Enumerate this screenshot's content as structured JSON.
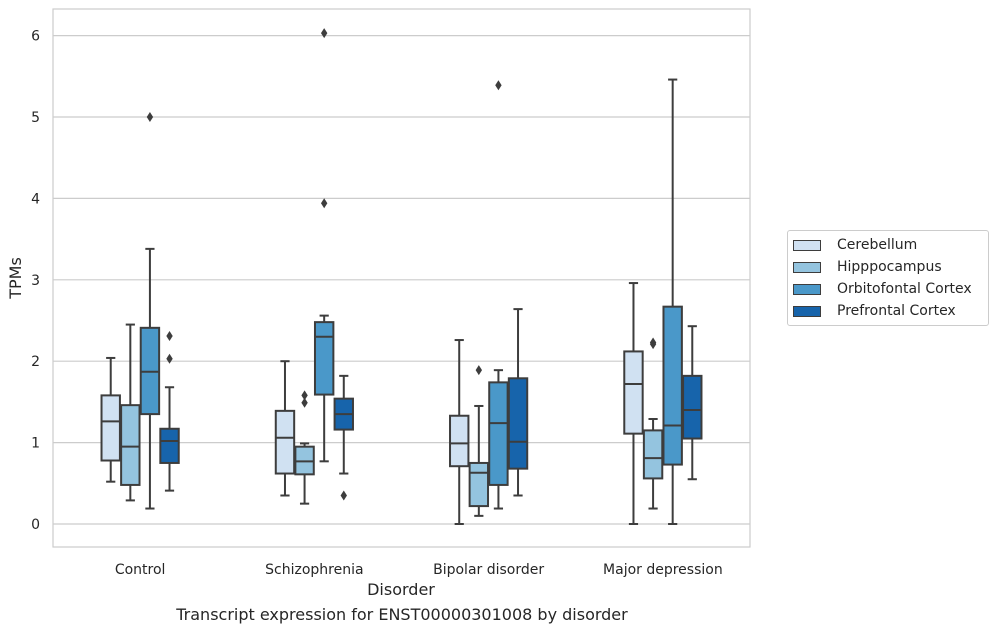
{
  "chart_data": {
    "type": "box",
    "xlabel": "Disorder",
    "ylabel": "TPMs",
    "caption": "Transcript expression for ENST00000301008 by disorder",
    "ylim": [
      -0.3,
      6.35
    ],
    "yticks": [
      0,
      1,
      2,
      3,
      4,
      5,
      6
    ],
    "grid": "horizontal",
    "legend_position": "right",
    "categories": [
      "Control",
      "Schizophrenia",
      "Bipolar disorder",
      "Major depression"
    ],
    "series": [
      {
        "name": "Cerebellum",
        "color": "#d0e1f2",
        "boxes": [
          {
            "low": 0.52,
            "q1": 0.78,
            "median": 1.26,
            "q3": 1.58,
            "high": 2.04,
            "outliers": []
          },
          {
            "low": 0.35,
            "q1": 0.62,
            "median": 1.06,
            "q3": 1.39,
            "high": 2.0,
            "outliers": []
          },
          {
            "low": 0.0,
            "q1": 0.71,
            "median": 0.99,
            "q3": 1.33,
            "high": 2.26,
            "outliers": []
          },
          {
            "low": 0.0,
            "q1": 1.11,
            "median": 1.72,
            "q3": 2.12,
            "high": 2.96,
            "outliers": []
          }
        ]
      },
      {
        "name": "Hipppocampus",
        "color": "#94c4df",
        "boxes": [
          {
            "low": 0.29,
            "q1": 0.48,
            "median": 0.95,
            "q3": 1.46,
            "high": 2.45,
            "outliers": []
          },
          {
            "low": 0.25,
            "q1": 0.61,
            "median": 0.77,
            "q3": 0.95,
            "high": 0.99,
            "outliers": [
              1.58,
              1.49
            ]
          },
          {
            "low": 0.1,
            "q1": 0.22,
            "median": 0.63,
            "q3": 0.75,
            "high": 1.45,
            "outliers": [
              1.89
            ]
          },
          {
            "low": 0.19,
            "q1": 0.56,
            "median": 0.81,
            "q3": 1.15,
            "high": 1.29,
            "outliers": [
              2.21,
              2.23
            ]
          }
        ]
      },
      {
        "name": "Orbitofontal Cortex",
        "color": "#4a98c9",
        "boxes": [
          {
            "low": 0.19,
            "q1": 1.35,
            "median": 1.87,
            "q3": 2.41,
            "high": 3.38,
            "outliers": [
              5.0
            ]
          },
          {
            "low": 0.77,
            "q1": 1.59,
            "median": 2.3,
            "q3": 2.48,
            "high": 2.56,
            "outliers": [
              6.03,
              3.94
            ]
          },
          {
            "low": 0.19,
            "q1": 0.48,
            "median": 1.24,
            "q3": 1.74,
            "high": 1.89,
            "outliers": [
              5.39
            ]
          },
          {
            "low": 0.0,
            "q1": 0.73,
            "median": 1.21,
            "q3": 2.67,
            "high": 5.46,
            "outliers": []
          }
        ]
      },
      {
        "name": "Prefrontal Cortex",
        "color": "#1764ab",
        "boxes": [
          {
            "low": 0.41,
            "q1": 0.75,
            "median": 1.02,
            "q3": 1.17,
            "high": 1.68,
            "outliers": [
              2.31,
              2.03
            ]
          },
          {
            "low": 0.62,
            "q1": 1.16,
            "median": 1.35,
            "q3": 1.54,
            "high": 1.82,
            "outliers": [
              0.35
            ]
          },
          {
            "low": 0.35,
            "q1": 0.68,
            "median": 1.01,
            "q3": 1.79,
            "high": 2.64,
            "outliers": []
          },
          {
            "low": 0.55,
            "q1": 1.05,
            "median": 1.4,
            "q3": 1.82,
            "high": 2.43,
            "outliers": []
          }
        ]
      }
    ]
  }
}
